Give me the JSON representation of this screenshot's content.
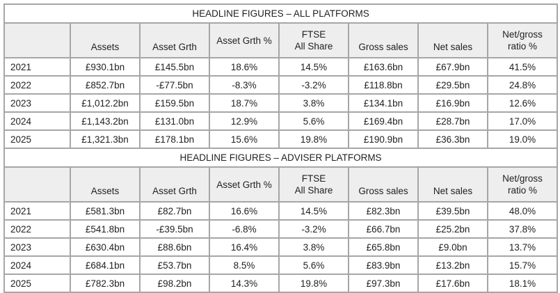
{
  "colors": {
    "border": "#a6a6a6",
    "header_bg": "#eeeeee",
    "text": "#1f1f1f",
    "row_bg": "#ffffff"
  },
  "tables": [
    {
      "title": "HEADLINE FIGURES – ALL PLATFORMS",
      "columns": [
        "",
        "Assets",
        "Asset Grth",
        "Asset Grth %",
        "FTSE\nAll Share",
        "Gross sales",
        "Net sales",
        "Net/gross\nratio %"
      ],
      "rows": [
        {
          "year": "2021",
          "values": [
            "£930.1bn",
            "£145.5bn",
            "18.6%",
            "14.5%",
            "£163.6bn",
            "£67.9bn",
            "41.5%"
          ]
        },
        {
          "year": "2022",
          "values": [
            "£852.7bn",
            "-£77.5bn",
            "-8.3%",
            "-3.2%",
            "£118.8bn",
            "£29.5bn",
            "24.8%"
          ]
        },
        {
          "year": "2023",
          "values": [
            "£1,012.2bn",
            "£159.5bn",
            "18.7%",
            "3.8%",
            "£134.1bn",
            "£16.9bn",
            "12.6%"
          ]
        },
        {
          "year": "2024",
          "values": [
            "£1,143.2bn",
            "£131.0bn",
            "12.9%",
            "5.6%",
            "£169.4bn",
            "£28.7bn",
            "17.0%"
          ]
        },
        {
          "year": "2025",
          "values": [
            "£1,321.3bn",
            "£178.1bn",
            "15.6%",
            "19.8%",
            "£190.9bn",
            "£36.3bn",
            "19.0%"
          ]
        }
      ]
    },
    {
      "title": "HEADLINE FIGURES – ADVISER PLATFORMS",
      "columns": [
        "",
        "Assets",
        "Asset Grth",
        "Asset Grth %",
        "FTSE\nAll Share",
        "Gross sales",
        "Net sales",
        "Net/gross\nratio %"
      ],
      "rows": [
        {
          "year": "2021",
          "values": [
            "£581.3bn",
            "£82.7bn",
            "16.6%",
            "14.5%",
            "£82.3bn",
            "£39.5bn",
            "48.0%"
          ]
        },
        {
          "year": "2022",
          "values": [
            "£541.8bn",
            "-£39.5bn",
            "-6.8%",
            "-3.2%",
            "£66.7bn",
            "£25.2bn",
            "37.8%"
          ]
        },
        {
          "year": "2023",
          "values": [
            "£630.4bn",
            "£88.6bn",
            "16.4%",
            "3.8%",
            "£65.8bn",
            "£9.0bn",
            "13.7%"
          ]
        },
        {
          "year": "2024",
          "values": [
            "£684.1bn",
            "£53.7bn",
            "8.5%",
            "5.6%",
            "£83.9bn",
            "£13.2bn",
            "15.7%"
          ]
        },
        {
          "year": "2025",
          "values": [
            "£782.3bn",
            "£98.2bn",
            "14.3%",
            "19.8%",
            "£97.3bn",
            "£17.6bn",
            "18.1%"
          ]
        }
      ]
    }
  ]
}
